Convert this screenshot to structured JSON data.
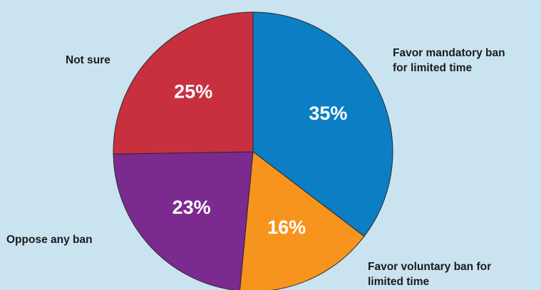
{
  "chart_data": {
    "type": "pie",
    "slices": [
      {
        "label": "Favor mandatory ban\nfor limited time",
        "value": 35,
        "value_label": "35%",
        "color": "#0b7ec4"
      },
      {
        "label": "Favor voluntary ban for\nlimited time",
        "value": 16,
        "value_label": "16%",
        "color": "#f7941d"
      },
      {
        "label": "Oppose any ban",
        "value": 23,
        "value_label": "23%",
        "color": "#7b2a8f"
      },
      {
        "label": "Not sure",
        "value": 25,
        "value_label": "25%",
        "color": "#c8303f"
      }
    ],
    "background": "#c9e3f1"
  }
}
